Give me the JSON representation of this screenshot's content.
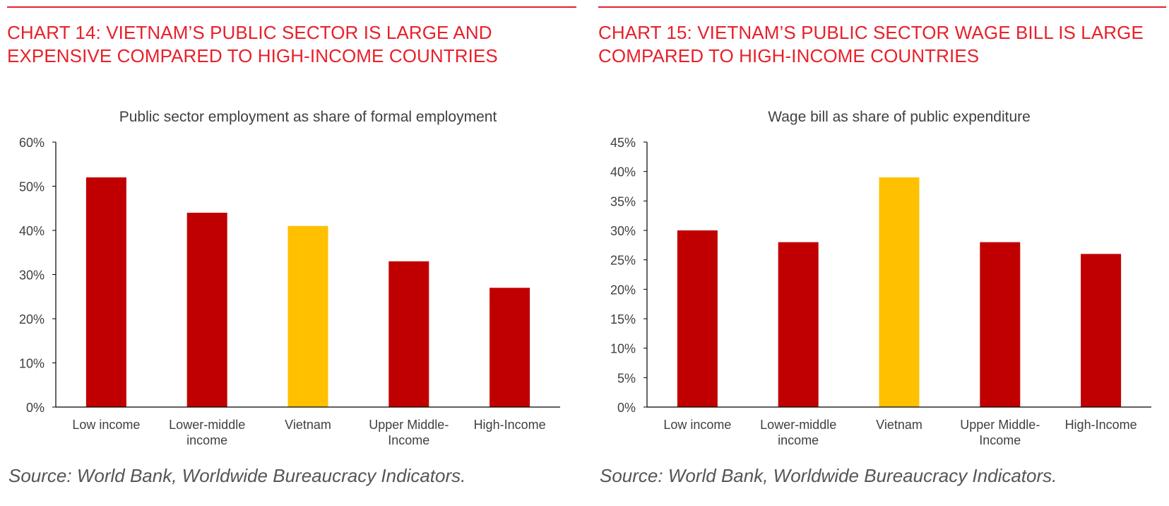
{
  "colors": {
    "accent": "#e8202a",
    "bar": "#c00000",
    "highlight": "#ffc000",
    "axis": "#000000",
    "text": "#404040",
    "source": "#555555"
  },
  "charts": [
    {
      "title": "CHART 14: VIETNAM’S PUBLIC SECTOR IS LARGE AND EXPENSIVE COMPARED TO HIGH-INCOME COUNTRIES",
      "source": "Source: World Bank, Worldwide Bureaucracy Indicators."
    },
    {
      "title": "CHART 15: VIETNAM’S PUBLIC SECTOR WAGE BILL IS LARGE COMPARED TO HIGH-INCOME COUNTRIES",
      "source": "Source: World Bank, Worldwide Bureaucracy Indicators."
    }
  ],
  "chart_data": [
    {
      "type": "bar",
      "title": "Public sector employment as share of formal employment",
      "categories": [
        [
          "Low income"
        ],
        [
          "Lower-middle",
          "income"
        ],
        [
          "Vietnam"
        ],
        [
          "Upper Middle-",
          "Income"
        ],
        [
          "High-Income"
        ]
      ],
      "values": [
        52,
        44,
        41,
        33,
        27
      ],
      "highlight_index": 2,
      "ylim": [
        0,
        60
      ],
      "yticks": [
        0,
        10,
        20,
        30,
        40,
        50,
        60
      ],
      "ytick_labels": [
        "0%",
        "10%",
        "20%",
        "30%",
        "40%",
        "50%",
        "60%"
      ],
      "xlabel": "",
      "ylabel": "",
      "grid": false,
      "legend": "none"
    },
    {
      "type": "bar",
      "title": "Wage bill as share of public expenditure",
      "categories": [
        [
          "Low income"
        ],
        [
          "Lower-middle",
          "income"
        ],
        [
          "Vietnam"
        ],
        [
          "Upper Middle-",
          "Income"
        ],
        [
          "High-Income"
        ]
      ],
      "values": [
        30,
        28,
        39,
        28,
        26
      ],
      "highlight_index": 2,
      "ylim": [
        0,
        45
      ],
      "yticks": [
        0,
        5,
        10,
        15,
        20,
        25,
        30,
        35,
        40,
        45
      ],
      "ytick_labels": [
        "0%",
        "5%",
        "10%",
        "15%",
        "20%",
        "25%",
        "30%",
        "35%",
        "40%",
        "45%"
      ],
      "xlabel": "",
      "ylabel": "",
      "grid": false,
      "legend": "none"
    }
  ]
}
